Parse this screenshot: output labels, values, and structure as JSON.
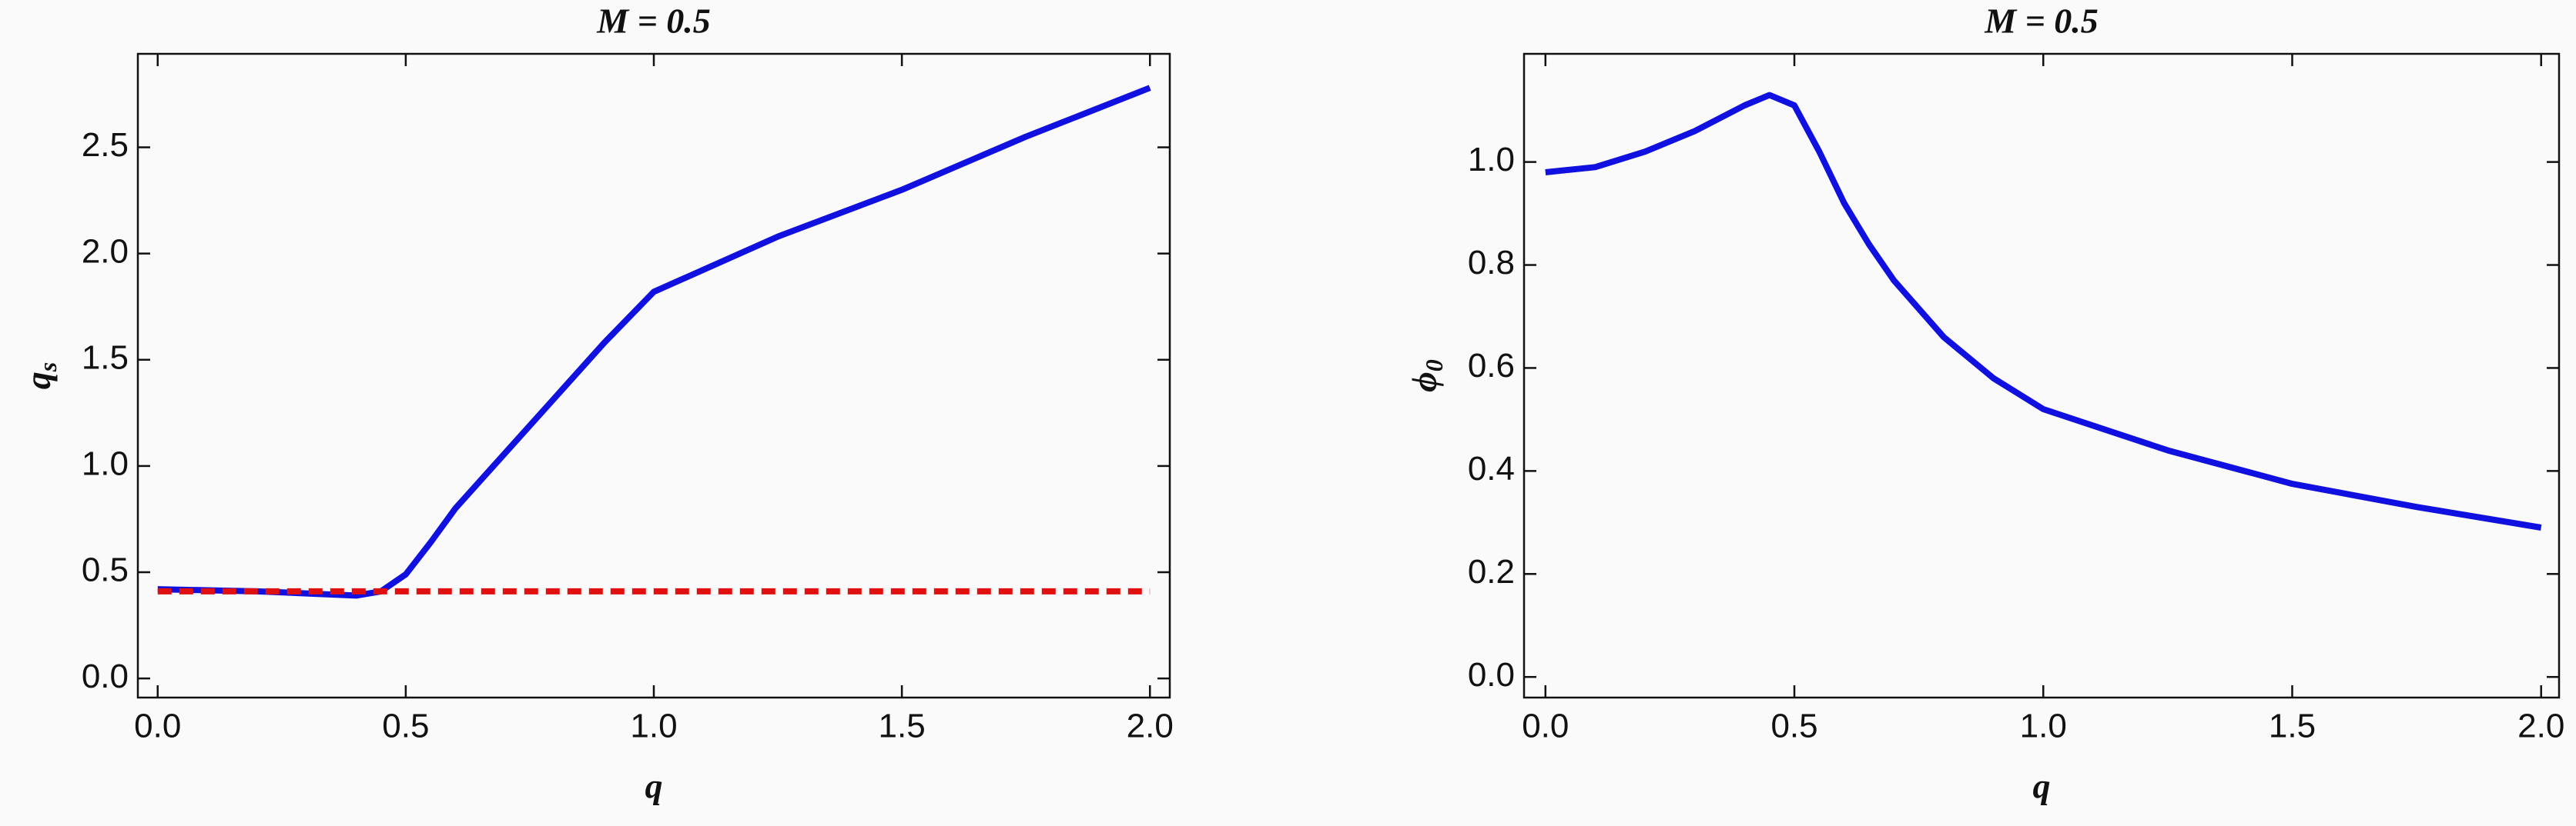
{
  "chart_data": [
    {
      "type": "line",
      "title": "M = 0.5",
      "xlabel": "q",
      "ylabel": "q",
      "ylabel_subscript": "s",
      "x": [
        0,
        0.1,
        0.2,
        0.3,
        0.4,
        0.45,
        0.5,
        0.55,
        0.6,
        0.7,
        0.8,
        0.9,
        1.0,
        1.25,
        1.5,
        1.75,
        2.0
      ],
      "series": [
        {
          "color": "#1010e0",
          "linestyle": "solid",
          "values": [
            0.42,
            0.415,
            0.41,
            0.4,
            0.39,
            0.41,
            0.49,
            0.64,
            0.8,
            1.06,
            1.32,
            1.58,
            1.82,
            2.08,
            2.3,
            2.55,
            2.78
          ]
        },
        {
          "color": "#e01010",
          "linestyle": "dashed",
          "values": [
            0.41,
            0.41,
            0.41,
            0.41,
            0.41,
            0.41,
            0.41,
            0.41,
            0.41,
            0.41,
            0.41,
            0.41,
            0.41,
            0.41,
            0.41,
            0.41,
            0.41
          ]
        }
      ],
      "xlim": [
        -0.04,
        2.04
      ],
      "ylim": [
        -0.09,
        2.94
      ],
      "xticks": [
        {
          "value": 0,
          "label": "0.0"
        },
        {
          "value": 0.5,
          "label": "0.5"
        },
        {
          "value": 1,
          "label": "1.0"
        },
        {
          "value": 1.5,
          "label": "1.5"
        },
        {
          "value": 2,
          "label": "2.0"
        }
      ],
      "yticks": [
        {
          "value": 0,
          "label": "0.0"
        },
        {
          "value": 0.5,
          "label": "0.5"
        },
        {
          "value": 1,
          "label": "1.0"
        },
        {
          "value": 1.5,
          "label": "1.5"
        },
        {
          "value": 2,
          "label": "2.0"
        },
        {
          "value": 2.5,
          "label": "2.5"
        }
      ]
    },
    {
      "type": "line",
      "title": "M = 0.5",
      "xlabel": "q",
      "ylabel": "ϕ",
      "ylabel_subscript": "0",
      "x": [
        0,
        0.1,
        0.2,
        0.3,
        0.4,
        0.45,
        0.5,
        0.55,
        0.6,
        0.65,
        0.7,
        0.8,
        0.9,
        1.0,
        1.25,
        1.5,
        1.75,
        2.0
      ],
      "series": [
        {
          "color": "#1010e0",
          "linestyle": "solid",
          "values": [
            0.98,
            0.99,
            1.02,
            1.06,
            1.11,
            1.13,
            1.11,
            1.02,
            0.92,
            0.84,
            0.77,
            0.66,
            0.58,
            0.52,
            0.44,
            0.375,
            0.33,
            0.29
          ]
        }
      ],
      "xlim": [
        -0.043,
        2.036
      ],
      "ylim": [
        -0.04,
        1.21
      ],
      "xticks": [
        {
          "value": 0,
          "label": "0.0"
        },
        {
          "value": 0.5,
          "label": "0.5"
        },
        {
          "value": 1,
          "label": "1.0"
        },
        {
          "value": 1.5,
          "label": "1.5"
        },
        {
          "value": 2,
          "label": "2.0"
        }
      ],
      "yticks": [
        {
          "value": 0,
          "label": "0.0"
        },
        {
          "value": 0.2,
          "label": "0.2"
        },
        {
          "value": 0.4,
          "label": "0.4"
        },
        {
          "value": 0.6,
          "label": "0.6"
        },
        {
          "value": 0.8,
          "label": "0.8"
        },
        {
          "value": 1,
          "label": "1.0"
        }
      ]
    }
  ]
}
